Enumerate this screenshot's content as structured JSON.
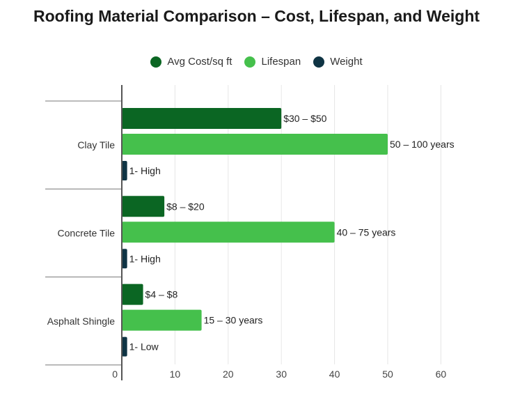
{
  "colors": {
    "avg_cost": "#0b6623",
    "lifespan": "#45c04c",
    "weight": "#0f3444",
    "grid": "#e6e6e6",
    "axis": "#555555"
  },
  "chart_data": {
    "type": "bar",
    "orientation": "horizontal",
    "title": "Roofing Material Comparison – Cost, Lifespan, and Weight",
    "categories": [
      "Clay Tile",
      "Concrete Tile",
      "Asphalt Shingle"
    ],
    "series": [
      {
        "name": "Avg Cost/sq ft",
        "color_key": "avg_cost",
        "values": [
          30,
          8,
          4
        ],
        "labels": [
          "$30 – $50",
          "$8 – $20",
          "$4 – $8"
        ]
      },
      {
        "name": "Lifespan",
        "color_key": "lifespan",
        "values": [
          50,
          40,
          15
        ],
        "labels": [
          "50 – 100 years",
          "40 – 75 years",
          "15 – 30 years"
        ]
      },
      {
        "name": "Weight",
        "color_key": "weight",
        "values": [
          1,
          1,
          1
        ],
        "labels": [
          "1- High",
          "1- High",
          "1- Low"
        ]
      }
    ],
    "xlim": [
      0,
      60
    ],
    "xticks": [
      0,
      10,
      20,
      30,
      40,
      50,
      60
    ],
    "xlabel": "",
    "ylabel": "",
    "grid": true,
    "legend_position": "top"
  }
}
